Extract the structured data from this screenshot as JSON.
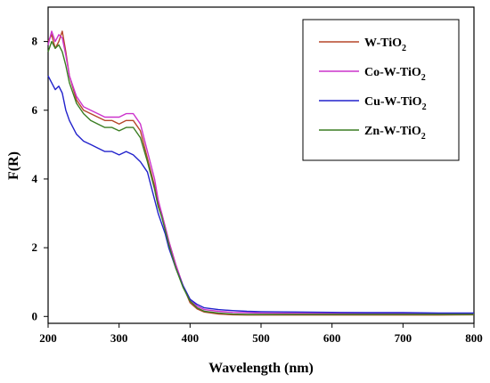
{
  "chart_data": {
    "type": "line",
    "xlabel": "Wavelength (nm)",
    "ylabel": "F(R)",
    "xlim": [
      200,
      800
    ],
    "ylim": [
      -0.2,
      9
    ],
    "xticks": [
      200,
      300,
      400,
      500,
      600,
      700,
      800
    ],
    "yticks": [
      0,
      2,
      4,
      6,
      8
    ],
    "legend_position": "top-right",
    "grid": false,
    "series": [
      {
        "name": "W-TiO2",
        "label_main": "W-TiO",
        "label_sub": "2",
        "color": "#b5472a",
        "x": [
          200,
          205,
          210,
          215,
          220,
          225,
          230,
          240,
          250,
          260,
          270,
          280,
          290,
          300,
          310,
          320,
          330,
          340,
          350,
          355,
          360,
          365,
          370,
          380,
          390,
          400,
          410,
          420,
          440,
          460,
          480,
          500,
          550,
          600,
          650,
          700,
          750,
          800
        ],
        "y": [
          8.0,
          8.2,
          7.8,
          8.0,
          8.3,
          7.7,
          7.0,
          6.3,
          6.0,
          5.9,
          5.8,
          5.7,
          5.7,
          5.6,
          5.7,
          5.7,
          5.4,
          4.6,
          3.8,
          3.3,
          3.0,
          2.6,
          2.2,
          1.5,
          0.9,
          0.4,
          0.22,
          0.13,
          0.07,
          0.05,
          0.04,
          0.04,
          0.04,
          0.04,
          0.04,
          0.04,
          0.04,
          0.05
        ]
      },
      {
        "name": "Co-W-TiO2",
        "label_main": "Co-W-TiO",
        "label_sub": "2",
        "color": "#cc33cc",
        "x": [
          200,
          205,
          210,
          215,
          220,
          225,
          230,
          240,
          250,
          260,
          270,
          280,
          290,
          300,
          310,
          320,
          330,
          340,
          350,
          355,
          360,
          365,
          370,
          380,
          390,
          400,
          410,
          420,
          440,
          460,
          480,
          500,
          550,
          600,
          650,
          700,
          750,
          800
        ],
        "y": [
          7.9,
          8.3,
          8.0,
          8.2,
          8.1,
          7.6,
          7.0,
          6.4,
          6.1,
          6.0,
          5.9,
          5.8,
          5.8,
          5.8,
          5.9,
          5.9,
          5.6,
          4.8,
          4.0,
          3.4,
          3.0,
          2.6,
          2.2,
          1.5,
          0.9,
          0.5,
          0.3,
          0.2,
          0.15,
          0.12,
          0.11,
          0.1,
          0.09,
          0.09,
          0.08,
          0.08,
          0.08,
          0.08
        ]
      },
      {
        "name": "Cu-W-TiO2",
        "label_main": "Cu-W-TiO",
        "label_sub": "2",
        "color": "#2222cc",
        "x": [
          200,
          205,
          210,
          215,
          220,
          225,
          230,
          240,
          250,
          260,
          270,
          280,
          290,
          300,
          310,
          320,
          330,
          340,
          350,
          355,
          360,
          365,
          370,
          380,
          390,
          400,
          410,
          420,
          440,
          460,
          480,
          500,
          550,
          600,
          650,
          700,
          750,
          800
        ],
        "y": [
          7.0,
          6.8,
          6.6,
          6.7,
          6.5,
          6.0,
          5.7,
          5.3,
          5.1,
          5.0,
          4.9,
          4.8,
          4.8,
          4.7,
          4.8,
          4.7,
          4.5,
          4.2,
          3.4,
          3.0,
          2.7,
          2.4,
          2.0,
          1.4,
          0.9,
          0.5,
          0.35,
          0.25,
          0.2,
          0.17,
          0.15,
          0.14,
          0.13,
          0.12,
          0.11,
          0.11,
          0.1,
          0.1
        ]
      },
      {
        "name": "Zn-W-TiO2",
        "label_main": "Zn-W-TiO",
        "label_sub": "2",
        "color": "#3a7d22",
        "x": [
          200,
          205,
          210,
          215,
          220,
          225,
          230,
          240,
          250,
          260,
          270,
          280,
          290,
          300,
          310,
          320,
          330,
          340,
          350,
          355,
          360,
          365,
          370,
          380,
          390,
          400,
          410,
          420,
          440,
          460,
          480,
          500,
          550,
          600,
          650,
          700,
          750,
          800
        ],
        "y": [
          7.7,
          8.0,
          7.8,
          7.9,
          7.7,
          7.3,
          6.8,
          6.2,
          5.9,
          5.7,
          5.6,
          5.5,
          5.5,
          5.4,
          5.5,
          5.5,
          5.2,
          4.5,
          3.7,
          3.2,
          2.9,
          2.5,
          2.1,
          1.4,
          0.85,
          0.45,
          0.25,
          0.15,
          0.1,
          0.07,
          0.06,
          0.06,
          0.06,
          0.06,
          0.06,
          0.06,
          0.06,
          0.06
        ]
      }
    ]
  }
}
